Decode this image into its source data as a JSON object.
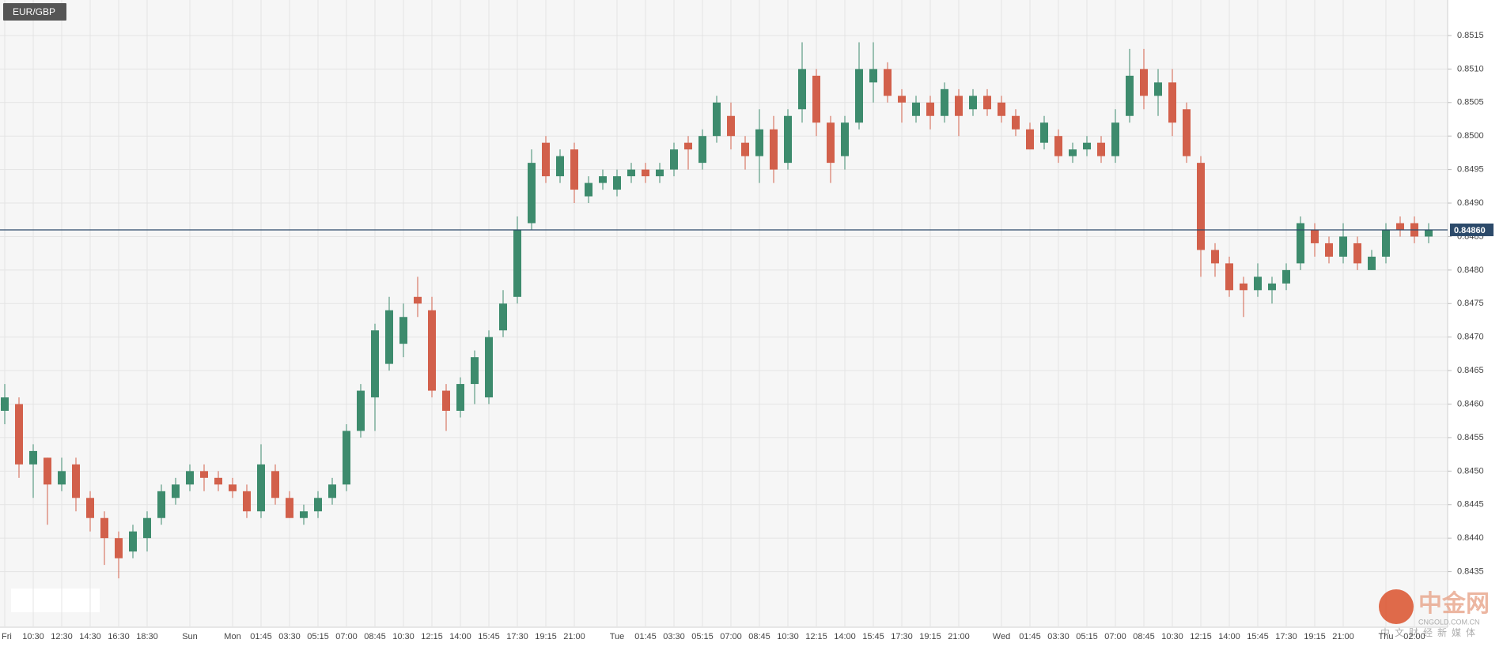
{
  "chart_data": {
    "type": "candlestick",
    "title": "EUR/GBP",
    "up_color": "#3d8b6d",
    "down_color": "#d2604b",
    "grid": true,
    "ylim": [
      0.84267,
      0.85203
    ],
    "yticks": [
      0.8435,
      {
        "value": 0.844,
        "label": "0.8440"
      },
      0.8445,
      {
        "value": 0.845,
        "label": "0.8450"
      },
      0.8455,
      {
        "value": 0.846,
        "label": "0.8460"
      },
      0.8465,
      {
        "value": 0.847,
        "label": "0.8470"
      },
      0.8475,
      {
        "value": 0.848,
        "label": "0.8480"
      },
      0.8485,
      {
        "value": 0.849,
        "label": "0.8490"
      },
      0.8495,
      {
        "value": 0.85,
        "label": "0.8500"
      },
      0.8505,
      {
        "value": 0.851,
        "label": "0.8510"
      },
      0.8515
    ],
    "current_price": {
      "value": 0.8486,
      "label": "0.84860",
      "color": "#2c4a6a"
    },
    "categories": [
      "Fri",
      null,
      "10:30",
      null,
      "12:30",
      null,
      "14:30",
      null,
      "16:30",
      null,
      "18:30",
      null,
      null,
      "Sun",
      null,
      null,
      "Mon",
      null,
      "01:45",
      null,
      "03:30",
      null,
      "05:15",
      null,
      "07:00",
      null,
      "08:45",
      null,
      "10:30",
      null,
      "12:15",
      null,
      "14:00",
      null,
      "15:45",
      null,
      "17:30",
      null,
      "19:15",
      null,
      "21:00",
      null,
      null,
      "Tue",
      null,
      "01:45",
      null,
      "03:30",
      null,
      "05:15",
      null,
      "07:00",
      null,
      "08:45",
      null,
      "10:30",
      null,
      "12:15",
      null,
      "14:00",
      null,
      "15:45",
      null,
      "17:30",
      null,
      "19:15",
      null,
      "21:00",
      null,
      null,
      "Wed",
      null,
      "01:45",
      null,
      "03:30",
      null,
      "05:15",
      null,
      "07:00",
      null,
      "08:45",
      null,
      "10:30",
      null,
      "12:15",
      null,
      "14:00",
      null,
      "15:45",
      null,
      "17:30",
      null,
      "19:15",
      null,
      "21:00",
      null,
      null,
      "Thu",
      null,
      "02:00",
      null
    ],
    "open": [
      0.8459,
      0.846,
      0.8451,
      0.8452,
      0.8448,
      0.8451,
      0.8446,
      0.8443,
      0.844,
      0.8438,
      0.844,
      0.8443,
      0.8446,
      0.8448,
      0.845,
      0.8449,
      0.8448,
      0.8447,
      0.8444,
      0.845,
      0.8446,
      0.8443,
      0.8444,
      0.8446,
      0.8448,
      0.8456,
      0.8461,
      0.8466,
      0.8469,
      0.8476,
      0.8474,
      0.8462,
      0.8459,
      0.8463,
      0.8461,
      0.8471,
      0.8476,
      0.8487,
      0.8499,
      0.8494,
      0.8498,
      0.8491,
      0.8493,
      0.8492,
      0.8494,
      0.8495,
      0.8494,
      0.8495,
      0.8499,
      0.8496,
      0.85,
      0.8503,
      0.8499,
      0.8497,
      0.8501,
      0.8496,
      0.8504,
      0.8509,
      0.8502,
      0.8497,
      0.8502,
      0.8508,
      0.851,
      0.8506,
      0.8503,
      0.8505,
      0.8503,
      0.8506,
      0.8504,
      0.8506,
      0.8505,
      0.8503,
      0.8501,
      0.8499,
      0.85,
      0.8497,
      0.8498,
      0.8499,
      0.8497,
      0.8503,
      0.851,
      0.8506,
      0.8508,
      0.8504,
      0.8496,
      0.8483,
      0.8481,
      0.8478,
      0.8477,
      0.8477,
      0.8478,
      0.8481,
      0.8486,
      0.8484,
      0.8482,
      0.8484,
      0.848,
      0.8482,
      0.8487,
      0.8487,
      0.8485
    ],
    "high": [
      0.8463,
      0.8461,
      0.8454,
      0.8452,
      0.8452,
      0.8452,
      0.8447,
      0.8444,
      0.8441,
      0.8442,
      0.8444,
      0.8448,
      0.8449,
      0.8451,
      0.8451,
      0.845,
      0.8449,
      0.8448,
      0.8454,
      0.8451,
      0.8447,
      0.8445,
      0.8447,
      0.8449,
      0.8457,
      0.8463,
      0.8472,
      0.8476,
      0.8475,
      0.8479,
      0.8476,
      0.8463,
      0.8464,
      0.8468,
      0.8471,
      0.8477,
      0.8488,
      0.8498,
      0.85,
      0.8498,
      0.8499,
      0.8494,
      0.8495,
      0.8495,
      0.8496,
      0.8496,
      0.8496,
      0.8499,
      0.85,
      0.8501,
      0.8506,
      0.8505,
      0.85,
      0.8504,
      0.8503,
      0.8504,
      0.8514,
      0.851,
      0.8503,
      0.8503,
      0.8514,
      0.8514,
      0.8511,
      0.8507,
      0.8506,
      0.8506,
      0.8508,
      0.8507,
      0.8507,
      0.8507,
      0.8506,
      0.8504,
      0.8502,
      0.8503,
      0.8501,
      0.8499,
      0.85,
      0.85,
      0.8504,
      0.8513,
      0.8513,
      0.851,
      0.851,
      0.8505,
      0.8497,
      0.8484,
      0.8482,
      0.8479,
      0.8481,
      0.8479,
      0.8481,
      0.8488,
      0.8487,
      0.8485,
      0.8487,
      0.8485,
      0.8483,
      0.8487,
      0.8488,
      0.8488,
      0.8487
    ],
    "low": [
      0.8457,
      0.8449,
      0.8446,
      0.8442,
      0.8447,
      0.8444,
      0.8441,
      0.8436,
      0.8434,
      0.8437,
      0.8438,
      0.8442,
      0.8445,
      0.8447,
      0.8447,
      0.8447,
      0.8446,
      0.8443,
      0.8443,
      0.8445,
      0.8443,
      0.8442,
      0.8443,
      0.8445,
      0.8447,
      0.8455,
      0.8456,
      0.8465,
      0.8467,
      0.8473,
      0.8461,
      0.8456,
      0.8458,
      0.846,
      0.846,
      0.847,
      0.8475,
      0.8486,
      0.8493,
      0.8493,
      0.849,
      0.849,
      0.8492,
      0.8491,
      0.8493,
      0.8493,
      0.8493,
      0.8494,
      0.8495,
      0.8495,
      0.8499,
      0.8498,
      0.8495,
      0.8493,
      0.8493,
      0.8495,
      0.8502,
      0.85,
      0.8493,
      0.8495,
      0.8501,
      0.8505,
      0.8505,
      0.8502,
      0.8502,
      0.8501,
      0.8502,
      0.85,
      0.8503,
      0.8503,
      0.8502,
      0.85,
      0.8498,
      0.8498,
      0.8496,
      0.8496,
      0.8497,
      0.8496,
      0.8496,
      0.8502,
      0.8504,
      0.8503,
      0.85,
      0.8496,
      0.8479,
      0.8479,
      0.8476,
      0.8473,
      0.8476,
      0.8475,
      0.8477,
      0.848,
      0.8482,
      0.8481,
      0.8481,
      0.848,
      0.848,
      0.8481,
      0.8485,
      0.8484,
      0.8484
    ],
    "close": [
      0.8461,
      0.8451,
      0.8453,
      0.8448,
      0.845,
      0.8446,
      0.8443,
      0.844,
      0.8437,
      0.8441,
      0.8443,
      0.8447,
      0.8448,
      0.845,
      0.8449,
      0.8448,
      0.8447,
      0.8444,
      0.8451,
      0.8446,
      0.8443,
      0.8444,
      0.8446,
      0.8448,
      0.8456,
      0.8462,
      0.8471,
      0.8474,
      0.8473,
      0.8475,
      0.8462,
      0.8459,
      0.8463,
      0.8467,
      0.847,
      0.8475,
      0.8486,
      0.8496,
      0.8494,
      0.8497,
      0.8492,
      0.8493,
      0.8494,
      0.8494,
      0.8495,
      0.8494,
      0.8495,
      0.8498,
      0.8498,
      0.85,
      0.8505,
      0.85,
      0.8497,
      0.8501,
      0.8495,
      0.8503,
      0.851,
      0.8502,
      0.8496,
      0.8502,
      0.851,
      0.851,
      0.8506,
      0.8505,
      0.8505,
      0.8503,
      0.8507,
      0.8503,
      0.8506,
      0.8504,
      0.8503,
      0.8501,
      0.8498,
      0.8502,
      0.8497,
      0.8498,
      0.8499,
      0.8497,
      0.8502,
      0.8509,
      0.8506,
      0.8508,
      0.8502,
      0.8497,
      0.8483,
      0.8481,
      0.8477,
      0.8477,
      0.8479,
      0.8478,
      0.848,
      0.8487,
      0.8484,
      0.8482,
      0.8485,
      0.8481,
      0.8482,
      0.8486,
      0.8486,
      0.8485,
      0.8486
    ],
    "watermark": {
      "brand": "中金网",
      "site": "CNGOLD.COM.CN",
      "slogan": "中文财经新媒体"
    }
  }
}
